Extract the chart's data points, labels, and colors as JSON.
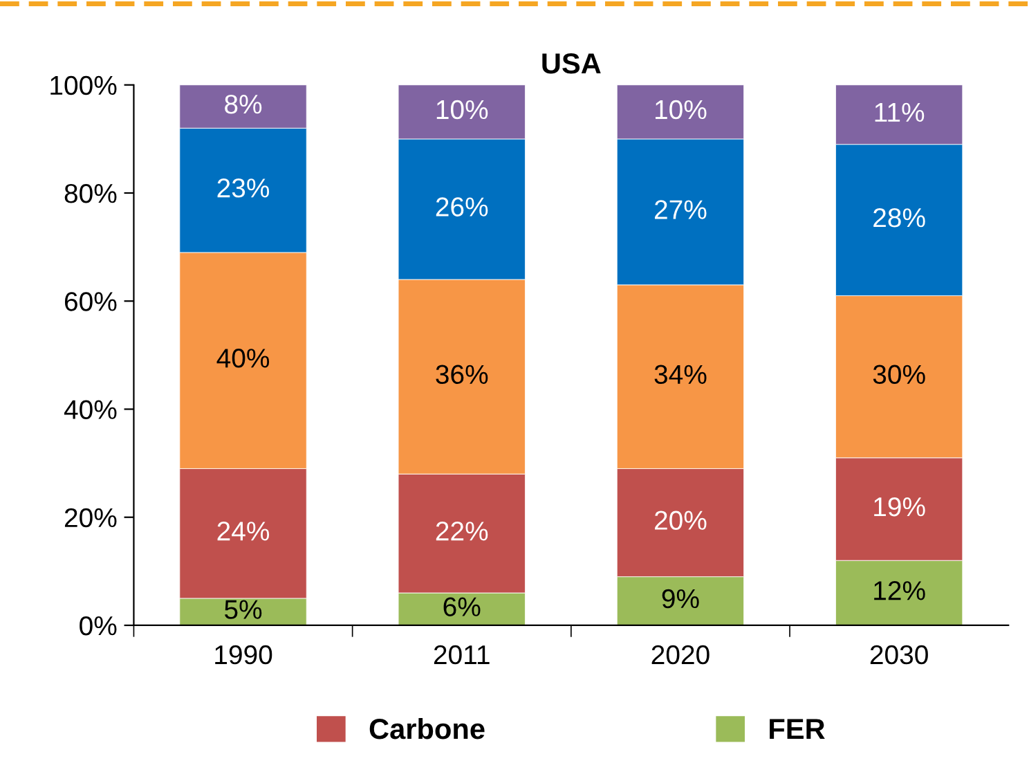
{
  "chart_data": {
    "type": "bar",
    "title": "USA",
    "stacked": true,
    "categories": [
      "1990",
      "2011",
      "2020",
      "2030"
    ],
    "series": [
      {
        "name": "FER",
        "color": "#9bbb59",
        "values": [
          5,
          6,
          9,
          12
        ],
        "value_labels": [
          "5%",
          "6%",
          "9%",
          "12%"
        ]
      },
      {
        "name": "Carbone",
        "color": "#c0504d",
        "values": [
          24,
          22,
          20,
          19
        ],
        "value_labels": [
          "24%",
          "22%",
          "20%",
          "19%"
        ]
      },
      {
        "color": "#f79646",
        "values": [
          40,
          36,
          34,
          30
        ],
        "value_labels": [
          "40%",
          "36%",
          "34%",
          "30%"
        ]
      },
      {
        "color": "#0070c0",
        "values": [
          23,
          26,
          27,
          28
        ],
        "value_labels": [
          "23%",
          "26%",
          "27%",
          "28%"
        ]
      },
      {
        "color": "#8064a2",
        "values": [
          8,
          10,
          10,
          11
        ],
        "value_labels": [
          "8%",
          "10%",
          "10%",
          "11%"
        ]
      }
    ],
    "ylim": [
      0,
      100
    ],
    "yticks": [
      {
        "value": 0,
        "label": "0%"
      },
      {
        "value": 20,
        "label": "20%"
      },
      {
        "value": 40,
        "label": "40%"
      },
      {
        "value": 60,
        "label": "60%"
      },
      {
        "value": 80,
        "label": "80%"
      },
      {
        "value": 100,
        "label": "100%"
      }
    ],
    "grid": false,
    "legend": "bottom"
  }
}
